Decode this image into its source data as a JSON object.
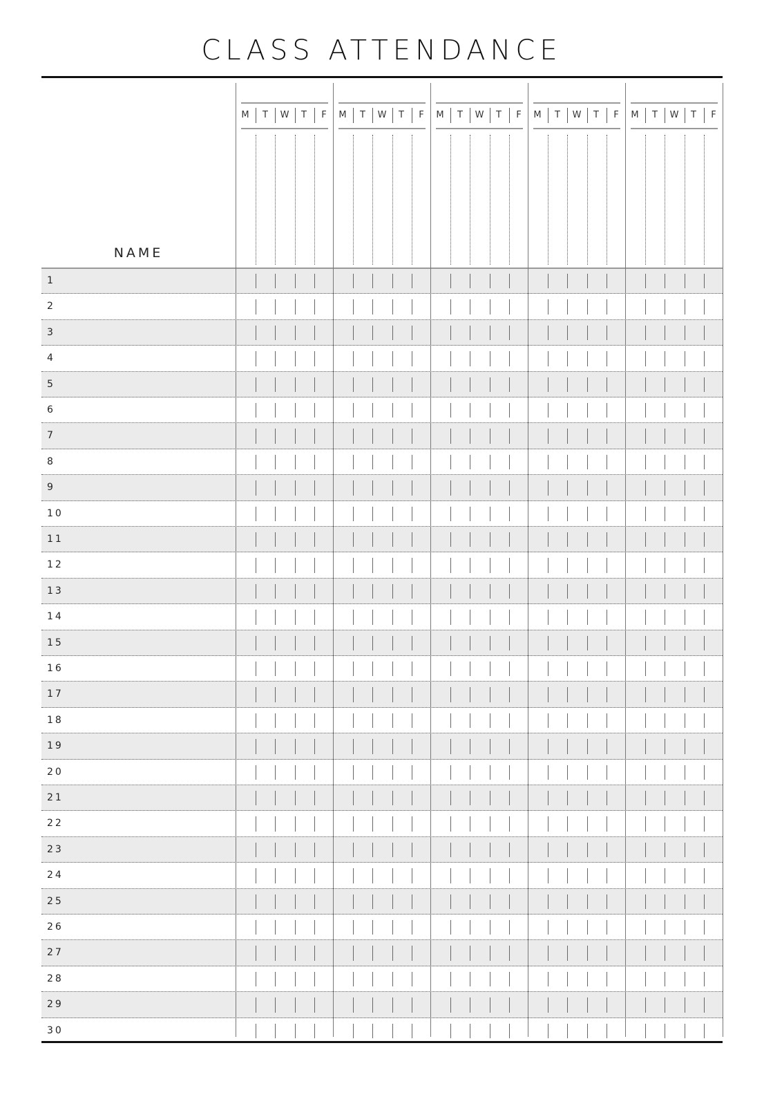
{
  "title": "CLASS ATTENDANCE",
  "name_header": "NAME",
  "weeks": 5,
  "days": [
    "M",
    "T",
    "W",
    "T",
    "F"
  ],
  "rows": [
    "1",
    "2",
    "3",
    "4",
    "5",
    "6",
    "7",
    "8",
    "9",
    "10",
    "11",
    "12",
    "13",
    "14",
    "15",
    "16",
    "17",
    "18",
    "19",
    "20",
    "21",
    "22",
    "23",
    "24",
    "25",
    "26",
    "27",
    "28",
    "29",
    "30"
  ],
  "colors": {
    "shade": "#ebebeb",
    "rule": "#111111"
  }
}
